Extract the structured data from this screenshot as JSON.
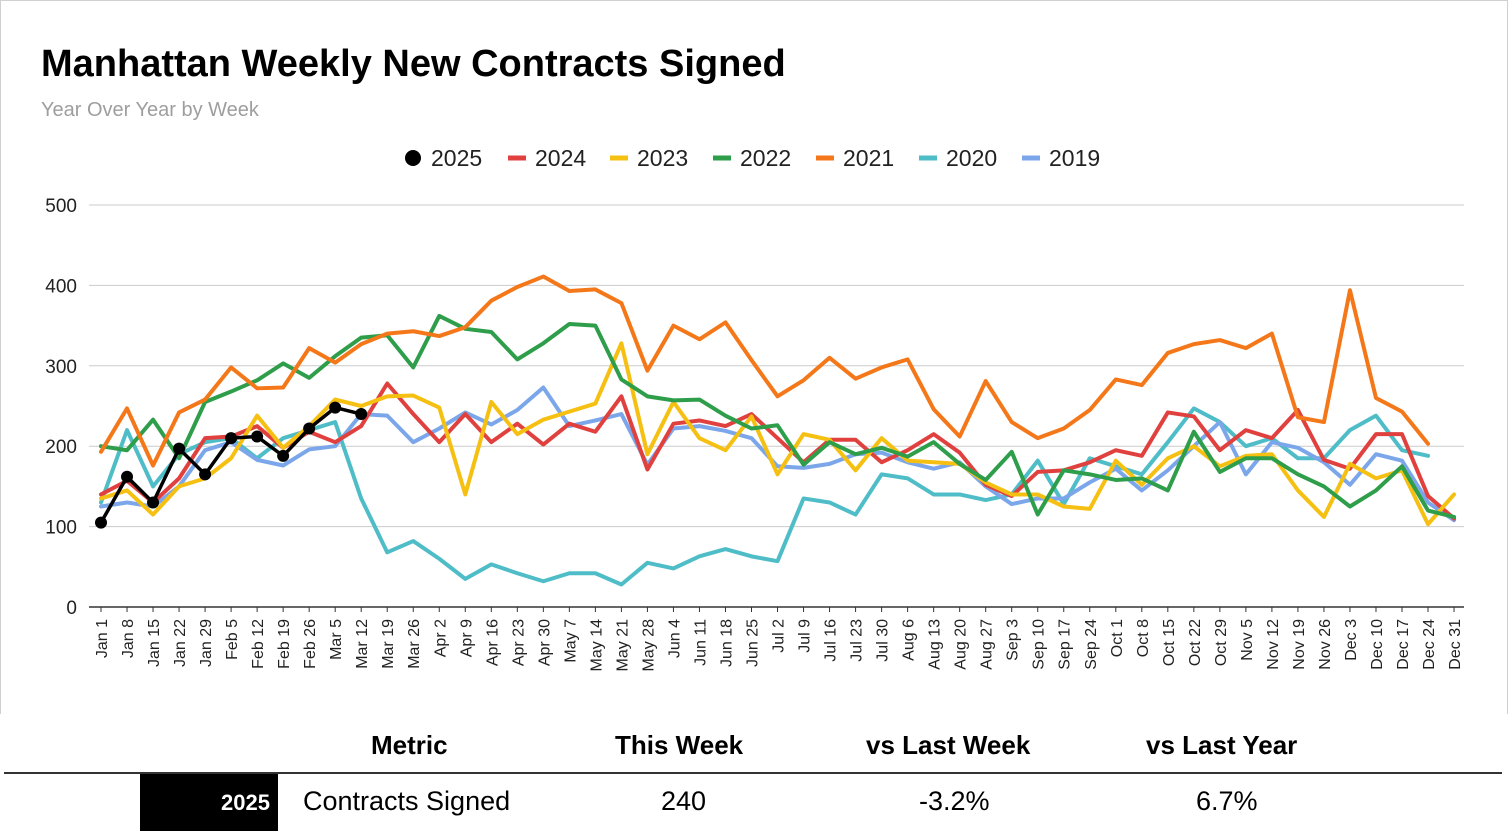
{
  "chart_data": {
    "type": "line",
    "title": "Manhattan Weekly New Contracts Signed",
    "subtitle": "Year Over Year by Week",
    "ylim": [
      0,
      500
    ],
    "yticks": [
      0,
      100,
      200,
      300,
      400,
      500
    ],
    "grid": true,
    "legend_position": "top-center",
    "categories": [
      "Jan 1",
      "Jan 8",
      "Jan 15",
      "Jan 22",
      "Jan 29",
      "Feb 5",
      "Feb 12",
      "Feb 19",
      "Feb 26",
      "Mar 5",
      "Mar 12",
      "Mar 19",
      "Mar 26",
      "Apr 2",
      "Apr 9",
      "Apr 16",
      "Apr 23",
      "Apr 30",
      "May 7",
      "May 14",
      "May 21",
      "May 28",
      "Jun 4",
      "Jun 11",
      "Jun 18",
      "Jun 25",
      "Jul 2",
      "Jul 9",
      "Jul 16",
      "Jul 23",
      "Jul 30",
      "Aug 6",
      "Aug 13",
      "Aug 20",
      "Aug 27",
      "Sep 3",
      "Sep 10",
      "Sep 17",
      "Sep 24",
      "Oct 1",
      "Oct 8",
      "Oct 15",
      "Oct 22",
      "Oct 29",
      "Nov 5",
      "Nov 12",
      "Nov 19",
      "Nov 26",
      "Dec 3",
      "Dec 10",
      "Dec 17",
      "Dec 24",
      "Dec 31"
    ],
    "series": [
      {
        "name": "2020",
        "color": "#4fbdc7",
        "marker": false,
        "values": [
          130,
          220,
          150,
          190,
          205,
          210,
          185,
          210,
          220,
          230,
          135,
          68,
          82,
          60,
          35,
          53,
          42,
          32,
          42,
          42,
          28,
          55,
          48,
          63,
          72,
          63,
          57,
          135,
          130,
          115,
          165,
          160,
          140,
          140,
          133,
          140,
          182,
          128,
          185,
          175,
          165,
          205,
          247,
          230,
          200,
          210,
          185,
          185,
          220,
          238,
          195,
          188,
          null
        ]
      },
      {
        "name": "2019",
        "color": "#7ba7ea",
        "marker": false,
        "values": [
          125,
          130,
          125,
          150,
          195,
          205,
          183,
          176,
          196,
          200,
          240,
          238,
          205,
          222,
          242,
          227,
          245,
          273,
          225,
          232,
          240,
          177,
          222,
          225,
          219,
          210,
          175,
          173,
          178,
          190,
          192,
          180,
          172,
          180,
          150,
          128,
          135,
          135,
          155,
          172,
          145,
          170,
          200,
          230,
          165,
          205,
          198,
          180,
          152,
          190,
          182,
          130,
          108
        ]
      },
      {
        "name": "2024",
        "color": "#e0413f",
        "marker": false,
        "values": [
          140,
          157,
          130,
          160,
          210,
          212,
          225,
          198,
          218,
          205,
          225,
          278,
          240,
          205,
          240,
          205,
          228,
          202,
          228,
          218,
          262,
          171,
          228,
          232,
          225,
          240,
          210,
          180,
          208,
          208,
          180,
          195,
          215,
          192,
          152,
          138,
          168,
          170,
          180,
          195,
          188,
          242,
          237,
          195,
          220,
          210,
          245,
          183,
          172,
          215,
          215,
          138,
          110
        ]
      },
      {
        "name": "2023",
        "color": "#f5c012",
        "marker": false,
        "values": [
          135,
          145,
          115,
          150,
          160,
          185,
          238,
          198,
          225,
          258,
          250,
          262,
          263,
          248,
          140,
          255,
          215,
          233,
          243,
          253,
          328,
          190,
          255,
          210,
          195,
          237,
          165,
          215,
          208,
          170,
          210,
          182,
          180,
          178,
          155,
          140,
          140,
          125,
          122,
          182,
          152,
          185,
          200,
          175,
          188,
          190,
          145,
          112,
          178,
          160,
          170,
          103,
          140
        ]
      },
      {
        "name": "2022",
        "color": "#2e9e4b",
        "marker": false,
        "values": [
          200,
          195,
          233,
          185,
          255,
          268,
          282,
          303,
          285,
          312,
          335,
          338,
          298,
          362,
          346,
          342,
          308,
          328,
          352,
          350,
          283,
          262,
          257,
          258,
          238,
          222,
          226,
          177,
          205,
          190,
          198,
          187,
          205,
          178,
          158,
          193,
          115,
          170,
          165,
          158,
          160,
          145,
          218,
          168,
          185,
          185,
          165,
          150,
          125,
          145,
          175,
          120,
          112
        ]
      },
      {
        "name": "2021",
        "color": "#f47819",
        "marker": false,
        "values": [
          193,
          247,
          176,
          242,
          258,
          298,
          272,
          273,
          322,
          304,
          327,
          340,
          343,
          337,
          348,
          381,
          398,
          411,
          393,
          395,
          378,
          294,
          350,
          333,
          354,
          307,
          262,
          282,
          310,
          284,
          298,
          308,
          246,
          212,
          281,
          230,
          210,
          222,
          245,
          283,
          276,
          316,
          327,
          332,
          322,
          340,
          236,
          230,
          394,
          260,
          243,
          203,
          null
        ]
      },
      {
        "name": "2025",
        "color": "#000000",
        "marker": true,
        "values": [
          105,
          162,
          130,
          197,
          165,
          210,
          212,
          188,
          222,
          248,
          240,
          null,
          null,
          null,
          null,
          null,
          null,
          null,
          null,
          null,
          null,
          null,
          null,
          null,
          null,
          null,
          null,
          null,
          null,
          null,
          null,
          null,
          null,
          null,
          null,
          null,
          null,
          null,
          null,
          null,
          null,
          null,
          null,
          null,
          null,
          null,
          null,
          null,
          null,
          null,
          null,
          null,
          null
        ]
      }
    ],
    "legend": [
      {
        "name": "2025",
        "color": "#000000",
        "marker": "dot"
      },
      {
        "name": "2024",
        "color": "#e0413f",
        "marker": "line"
      },
      {
        "name": "2023",
        "color": "#f5c012",
        "marker": "line"
      },
      {
        "name": "2022",
        "color": "#2e9e4b",
        "marker": "line"
      },
      {
        "name": "2021",
        "color": "#f47819",
        "marker": "line"
      },
      {
        "name": "2020",
        "color": "#4fbdc7",
        "marker": "line"
      },
      {
        "name": "2019",
        "color": "#7ba7ea",
        "marker": "line"
      }
    ]
  },
  "metrics_table": {
    "headers": {
      "metric": "Metric",
      "this_week": "This Week",
      "vs_last_week": "vs Last Week",
      "vs_last_year": "vs Last Year"
    },
    "row": {
      "year": "2025",
      "metric": "Contracts Signed",
      "this_week": "240",
      "vs_last_week": "-3.2%",
      "vs_last_year": "6.7%"
    }
  }
}
